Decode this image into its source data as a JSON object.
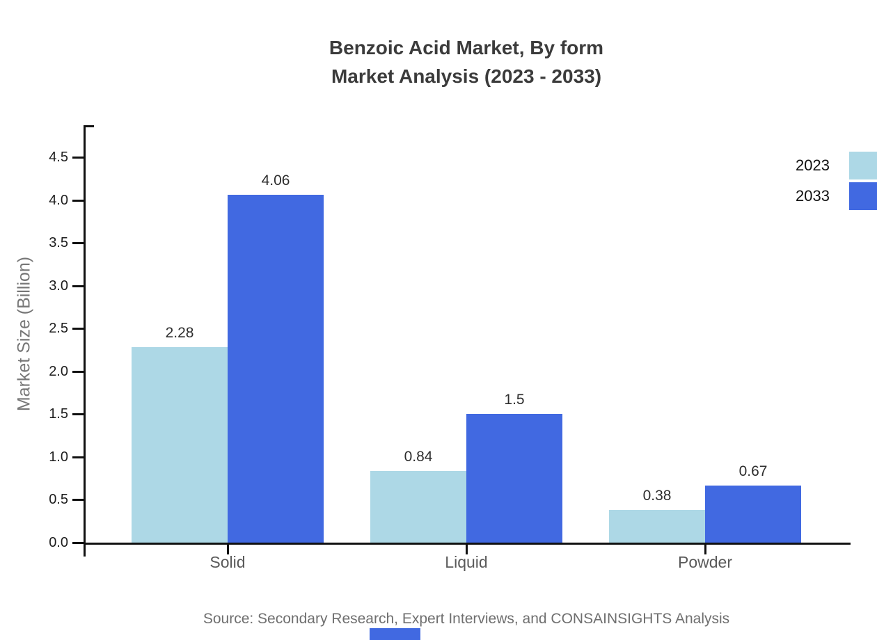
{
  "title": {
    "line1": "Benzoic Acid Market, By form",
    "line2": "Market Analysis (2023 - 2033)"
  },
  "source": "Source: Secondary Research, Expert Interviews, and CONSAINSIGHTS Analysis",
  "chart_data": {
    "type": "bar",
    "title": "Benzoic Acid Market, By form — Market Analysis (2023 - 2033)",
    "categories": [
      "Solid",
      "Liquid",
      "Powder"
    ],
    "series": [
      {
        "name": "2023",
        "color": "#ADD8E6",
        "values": [
          2.28,
          0.84,
          0.38
        ]
      },
      {
        "name": "2033",
        "color": "#4169E1",
        "values": [
          4.06,
          1.5,
          0.67
        ]
      }
    ],
    "xlabel": "",
    "ylabel": "Market Size (Billion)",
    "ylim": [
      0,
      4.875
    ],
    "yticks": [
      "0.0",
      "0.5",
      "1.0",
      "1.5",
      "2.0",
      "2.5",
      "3.0",
      "3.5",
      "4.0",
      "4.5"
    ],
    "grid": false,
    "legend_position": "top-right",
    "value_labels": true
  },
  "colors": {
    "axis": "#111111",
    "title_text": "#3b3b3b",
    "tick_text": "#1d1d1d",
    "category_text": "#5a5a5a",
    "muted_text": "#6f6f6f",
    "series_2023": "#ADD8E6",
    "series_2033": "#4169E1",
    "watermark": "#4169E1"
  }
}
